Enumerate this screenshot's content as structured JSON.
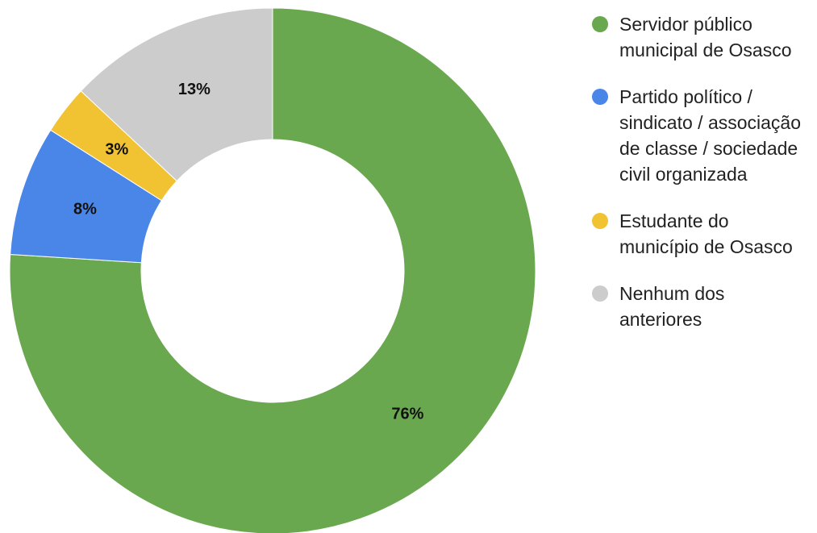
{
  "chart_data": {
    "type": "donut",
    "categories": [
      "Servidor público municipal de Osasco",
      "Partido político / sindicato / associação de classe / sociedade civil organizada",
      "Estudante do município de Osasco",
      "Nenhum dos anteriores"
    ],
    "values": [
      76,
      8,
      3,
      13
    ],
    "value_labels": [
      "76%",
      "8%",
      "3%",
      "13%"
    ],
    "colors": [
      "#6aa84f",
      "#4a86e8",
      "#f1c232",
      "#cccccc"
    ],
    "legend": "right"
  }
}
